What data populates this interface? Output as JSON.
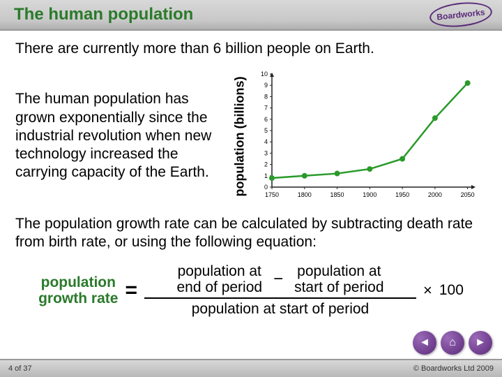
{
  "header": {
    "title": "The human population",
    "logo_text": "Boardworks"
  },
  "body": {
    "intro": "There are currently more than 6 billion people on Earth.",
    "para1": "The human population has grown exponentially since the industrial revolution when new technology increased the carrying capacity of the Earth.",
    "para2": "The population growth rate can be calculated by subtracting death rate from birth rate, or using the following equation:"
  },
  "chart": {
    "type": "line",
    "ylabel": "population (billions)",
    "x_ticks": [
      1750,
      1800,
      1850,
      1900,
      1950,
      2000,
      2050
    ],
    "y_ticks": [
      0,
      1,
      2,
      3,
      4,
      5,
      6,
      7,
      8,
      9,
      10
    ],
    "xlim": [
      1750,
      2060
    ],
    "ylim": [
      0,
      10
    ],
    "points": [
      {
        "x": 1750,
        "y": 0.8
      },
      {
        "x": 1800,
        "y": 1.0
      },
      {
        "x": 1850,
        "y": 1.2
      },
      {
        "x": 1900,
        "y": 1.6
      },
      {
        "x": 1950,
        "y": 2.5
      },
      {
        "x": 2000,
        "y": 6.1
      },
      {
        "x": 2050,
        "y": 9.2
      }
    ],
    "line_color": "#2a9a2a",
    "line_width": 2.5,
    "marker_size": 4,
    "axis_color": "#222222",
    "bg_color": "#ffffff",
    "tick_fontsize": 9,
    "label_color": "#000000"
  },
  "equation": {
    "lhs_line1": "population",
    "lhs_line2": "growth rate",
    "equals": "=",
    "num_a_line1": "population at",
    "num_a_line2": "end of period",
    "minus": "−",
    "num_b_line1": "population at",
    "num_b_line2": "start of period",
    "den": "population at start of period",
    "times": "×",
    "hundred": "100"
  },
  "footer": {
    "page": "4 of 37",
    "copyright": "© Boardworks Ltd 2009"
  },
  "nav": {
    "back": "◄",
    "home": "⌂",
    "fwd": "►"
  },
  "colors": {
    "title_color": "#2a7a2a",
    "brand_purple": "#5a2a7a"
  }
}
